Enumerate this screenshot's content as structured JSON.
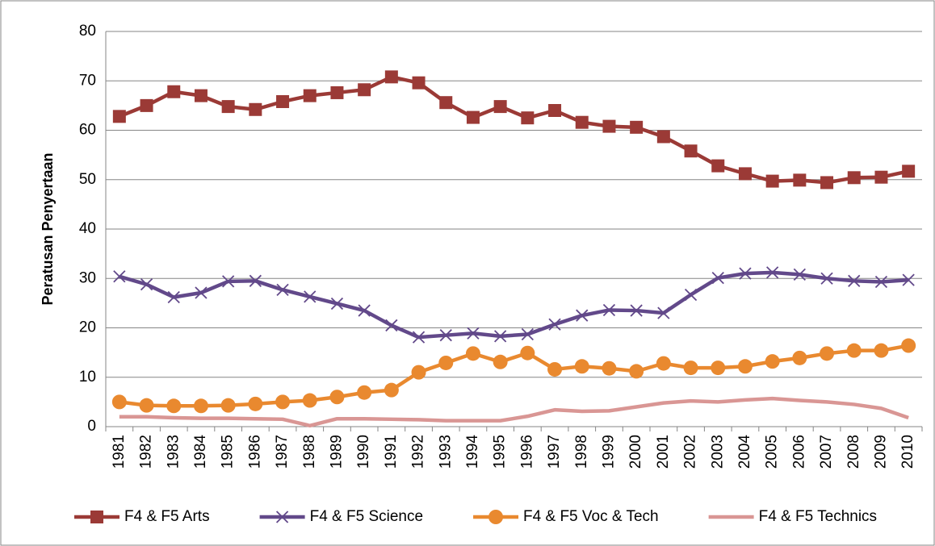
{
  "chart_data": {
    "type": "line",
    "y_label": "Peratusan Penyertaan",
    "categories": [
      "1981",
      "1982",
      "1983",
      "1984",
      "1985",
      "1986",
      "1987",
      "1988",
      "1989",
      "1990",
      "1991",
      "1992",
      "1993",
      "1994",
      "1995",
      "1996",
      "1997",
      "1998",
      "1999",
      "2000",
      "2001",
      "2002",
      "2003",
      "2004",
      "2005",
      "2006",
      "2007",
      "2008",
      "2009",
      "2010"
    ],
    "series": [
      {
        "name": "F4 & F5 Arts",
        "color": "#9b3a36",
        "marker": "square",
        "values": [
          62.8,
          65,
          67.8,
          67,
          64.8,
          64.2,
          65.8,
          67,
          67.6,
          68.2,
          70.8,
          69.6,
          65.6,
          62.6,
          64.8,
          62.5,
          64,
          61.6,
          60.8,
          60.6,
          58.7,
          55.8,
          52.8,
          51.2,
          49.7,
          49.9,
          49.4,
          50.4,
          50.5,
          51.7
        ]
      },
      {
        "name": "F4 & F5 Science",
        "color": "#62498a",
        "marker": "x",
        "values": [
          30.4,
          28.8,
          26.2,
          27.1,
          29.4,
          29.5,
          27.7,
          26.3,
          24.9,
          23.5,
          20.5,
          18.1,
          18.5,
          18.9,
          18.3,
          18.7,
          20.7,
          22.5,
          23.6,
          23.5,
          23,
          26.7,
          30.1,
          31,
          31.2,
          30.8,
          30,
          29.5,
          29.3,
          29.7
        ]
      },
      {
        "name": "F4 & F5 Voc & Tech",
        "color": "#e9892f",
        "marker": "circle",
        "values": [
          5,
          4.3,
          4.2,
          4.2,
          4.3,
          4.6,
          5,
          5.3,
          6,
          6.9,
          7.4,
          11,
          12.9,
          14.8,
          13.1,
          14.9,
          11.6,
          12.2,
          11.8,
          11.2,
          12.8,
          11.9,
          11.9,
          12.2,
          13.2,
          13.9,
          14.8,
          15.4,
          15.4,
          16.4
        ]
      },
      {
        "name": "F4 & F5 Technics",
        "color": "#d99694",
        "marker": "none",
        "values": [
          2,
          2,
          1.8,
          1.7,
          1.7,
          1.6,
          1.5,
          0.2,
          1.6,
          1.6,
          1.5,
          1.4,
          1.2,
          1.2,
          1.2,
          2.1,
          3.4,
          3.1,
          3.2,
          4,
          4.8,
          5.2,
          5,
          5.4,
          5.7,
          5.3,
          5,
          4.5,
          3.7,
          1.8
        ]
      }
    ],
    "ylim": [
      0,
      80
    ],
    "yticks": [
      0,
      10,
      20,
      30,
      40,
      50,
      60,
      70,
      80
    ],
    "grid": true
  }
}
